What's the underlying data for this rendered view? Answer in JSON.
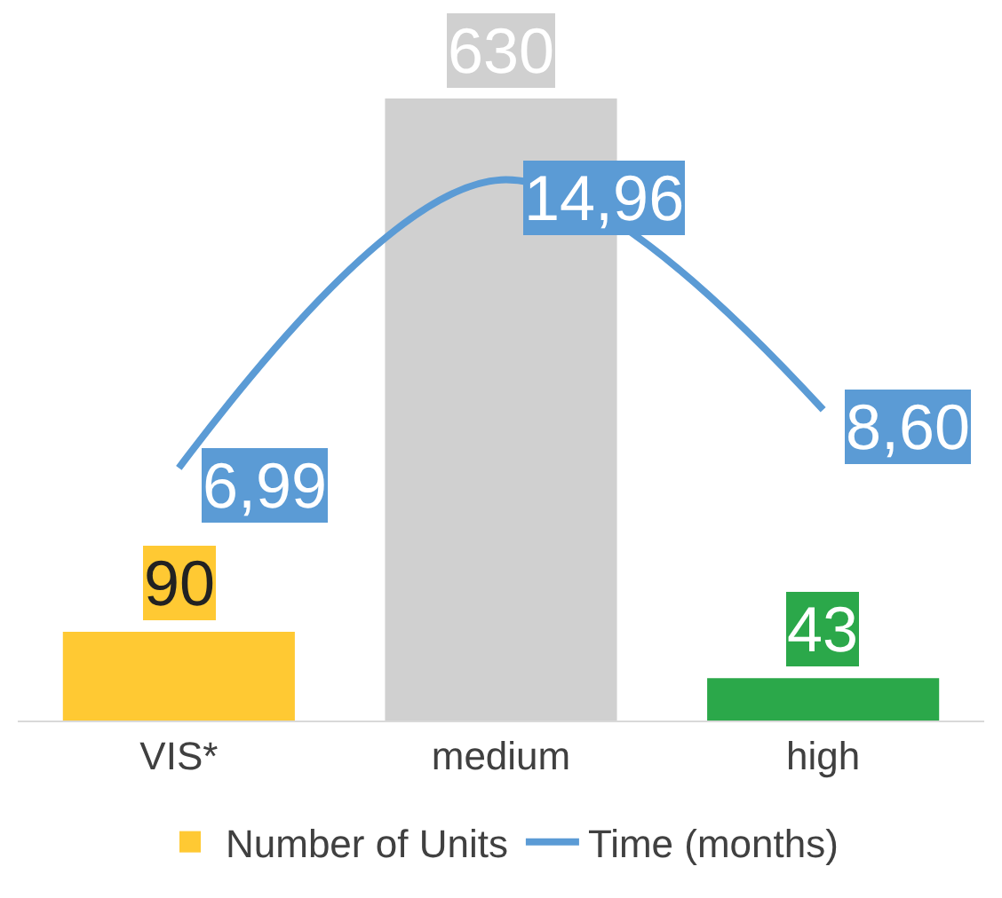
{
  "chart_data": {
    "type": "bar",
    "categories": [
      "VIS*",
      "medium",
      "high"
    ],
    "series": [
      {
        "name": "Number of Units",
        "colors": [
          "#ffc933",
          "#d0d0d0",
          "#2ba84a"
        ],
        "values": [
          90,
          630,
          43
        ]
      },
      {
        "name": "Time (months)",
        "type": "line",
        "axis": "y2",
        "color": "#5b9bd5",
        "values": [
          6.99,
          14.96,
          8.6
        ],
        "value_labels": [
          "6,99",
          "14,96",
          "8,60"
        ],
        "marker": "none"
      }
    ],
    "tick_labels": "x",
    "data_labels": true,
    "legend": "bottom"
  }
}
